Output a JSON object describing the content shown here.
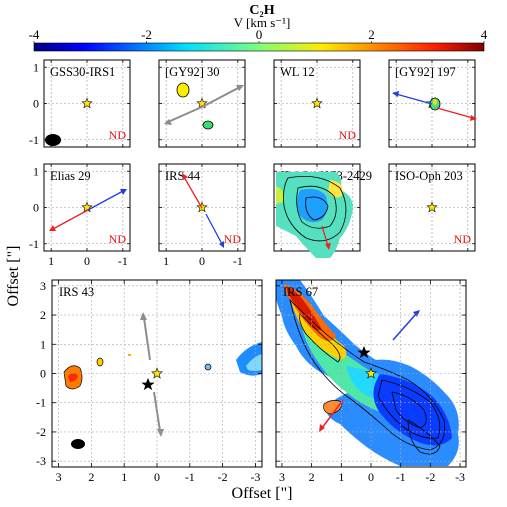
{
  "chart_data": {
    "type": "heatmap",
    "colorbar": {
      "title": "C₂H",
      "label": "V [km s⁻¹]",
      "ticks": [
        "-4",
        "-2",
        "0",
        "2",
        "4"
      ],
      "range": [
        -4,
        4
      ],
      "colormap": "jet"
    },
    "xlabel": "Offset [\"]",
    "ylabel": "Offset [\"]",
    "small_panels": {
      "xlim": [
        1.2,
        -1.2
      ],
      "ylim": [
        -1.2,
        1.2
      ],
      "x_ticks": [
        "1",
        "0",
        "-1"
      ],
      "y_ticks": [
        "1",
        "0",
        "-1"
      ],
      "grid": true
    },
    "large_panels": {
      "xlim": [
        3.2,
        -3.2
      ],
      "ylim": [
        -3.2,
        3.2
      ],
      "x_ticks": [
        "3",
        "2",
        "1",
        "0",
        "-1",
        "-2",
        "-3"
      ],
      "y_ticks": [
        "3",
        "2",
        "1",
        "0",
        "-1",
        "-2",
        "-3"
      ],
      "grid": true
    },
    "panels": [
      {
        "name": "GSS30-IRS1",
        "nd": "ND",
        "beam": true
      },
      {
        "name": "[GY92] 30",
        "nd": ""
      },
      {
        "name": "WL 12",
        "nd": "ND"
      },
      {
        "name": "[GY92] 197",
        "nd": ""
      },
      {
        "name": "Elias 29",
        "nd": "ND"
      },
      {
        "name": "IRS 44",
        "nd": "ND"
      },
      {
        "name": "IRAS 16253-2429",
        "nd": ""
      },
      {
        "name": "ISO-Oph 203",
        "nd": "ND"
      },
      {
        "name": "IRS 43",
        "nd": "",
        "beam": true
      },
      {
        "name": "IRS 67",
        "nd": ""
      }
    ]
  }
}
